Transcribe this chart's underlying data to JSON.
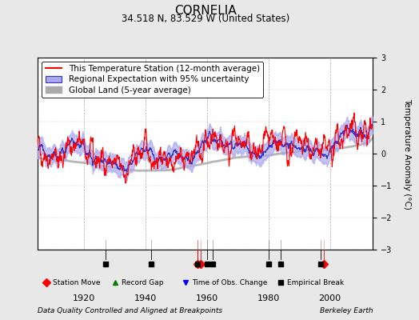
{
  "title": "CORNELIA",
  "subtitle": "34.518 N, 83.529 W (United States)",
  "ylabel": "Temperature Anomaly (°C)",
  "xlabel_left": "Data Quality Controlled and Aligned at Breakpoints",
  "xlabel_right": "Berkeley Earth",
  "ylim": [
    -3,
    3
  ],
  "xlim": [
    1905,
    2014
  ],
  "yticks": [
    -3,
    -2,
    -1,
    0,
    1,
    2,
    3
  ],
  "xticks": [
    1920,
    1940,
    1960,
    1980,
    2000
  ],
  "bg_color": "#e8e8e8",
  "plot_bg_color": "#ffffff",
  "station_color": "#ff0000",
  "regional_color": "#3333cc",
  "uncertainty_color": "#aaaaee",
  "global_color": "#aaaaaa",
  "seed": 42,
  "n_months": 1320,
  "start_year": 1905,
  "marker_events": {
    "station_moves": [
      1957,
      1958,
      1998
    ],
    "record_gaps": [],
    "time_obs_changes": [],
    "empirical_breaks": [
      1927,
      1942,
      1957,
      1960,
      1962,
      1980,
      1984,
      1997
    ]
  },
  "legend_fontsize": 7.5,
  "title_fontsize": 11,
  "subtitle_fontsize": 8.5
}
